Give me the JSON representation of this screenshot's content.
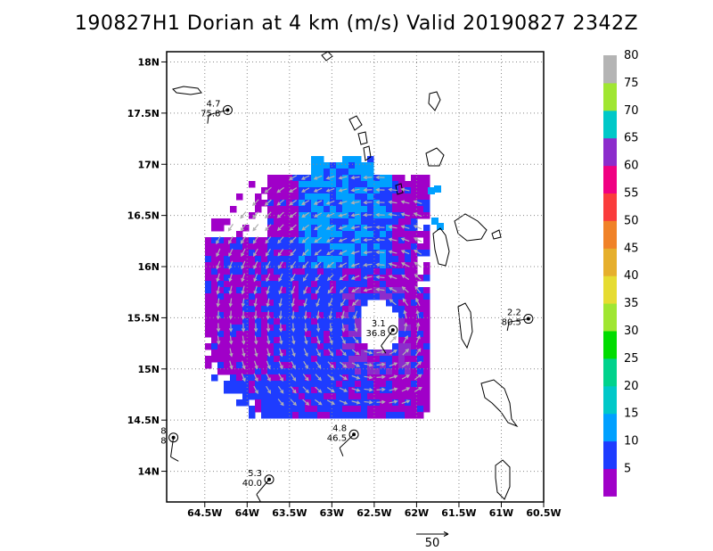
{
  "chart_data": {
    "type": "map",
    "title": "190827H1 Dorian at 4 km (m/s) Valid 20190827 2342Z",
    "lat_ticks": [
      "18N",
      "17.5N",
      "17N",
      "16.5N",
      "16N",
      "15.5N",
      "15N",
      "14.5N",
      "14N"
    ],
    "lon_ticks": [
      "64.5W",
      "64W",
      "63.5W",
      "63W",
      "62.5W",
      "62W",
      "61.5W",
      "61W",
      "60.5W"
    ],
    "lat_range": [
      13.7,
      18.1
    ],
    "lon_range": [
      -64.95,
      -60.5
    ],
    "grid": "dotted",
    "colorbar": {
      "labels": [
        "5",
        "10",
        "15",
        "20",
        "25",
        "30",
        "35",
        "40",
        "45",
        "50",
        "55",
        "60",
        "65",
        "70",
        "75",
        "80"
      ],
      "colors": [
        "#a000c8",
        "#1e3cff",
        "#00a0ff",
        "#00c8c8",
        "#00d28c",
        "#00dc00",
        "#a0e632",
        "#e6dc32",
        "#e6af2d",
        "#f08228",
        "#fa3c3c",
        "#f00082",
        "#8c2ccc",
        "#00c8c8",
        "#a0e632",
        "#b4b4b4"
      ]
    },
    "stations": [
      {
        "speed": "4.7",
        "dir": "75.8",
        "lon": -64.23,
        "lat": 17.53
      },
      {
        "speed": "3.1",
        "dir": "36.8",
        "lon": -62.28,
        "lat": 15.38
      },
      {
        "speed": "2.2",
        "dir": "80.5",
        "lon": -60.68,
        "lat": 15.49
      },
      {
        "speed": "4.8",
        "dir": "46.5",
        "lon": -62.74,
        "lat": 14.36
      },
      {
        "speed": "5.3",
        "dir": "40.0",
        "lon": -63.74,
        "lat": 13.92
      },
      {
        "speed": "8",
        "dir": "8",
        "lon": -64.87,
        "lat": 14.33
      }
    ],
    "reference_vector": {
      "label": "50"
    }
  }
}
